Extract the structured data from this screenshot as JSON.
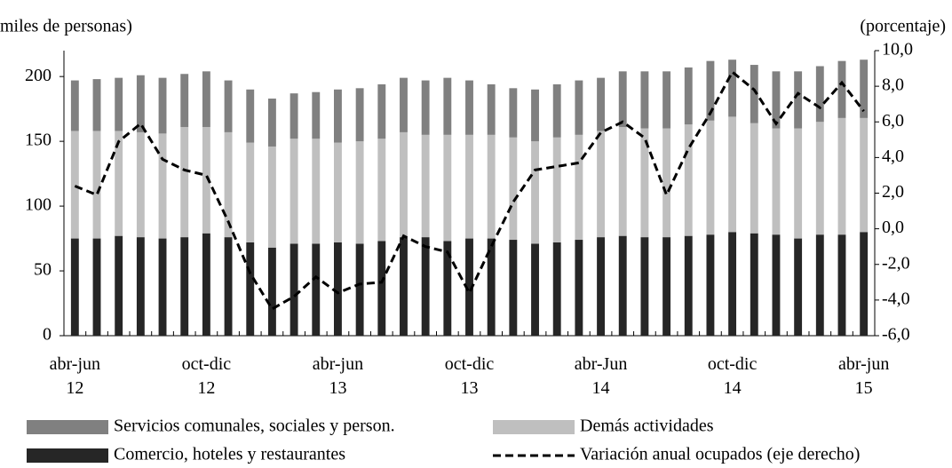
{
  "chart_data": {
    "type": "bar_line",
    "y_label": "miles de personas)",
    "y2_label": "(porcentaje)",
    "categories": [
      "abr-jun\n12",
      null,
      null,
      null,
      null,
      null,
      "oct-dic\n12",
      null,
      null,
      null,
      null,
      null,
      "abr-jun\n13",
      null,
      null,
      null,
      null,
      null,
      "oct-dic\n13",
      null,
      null,
      null,
      null,
      null,
      "abr-Jun\n14",
      null,
      null,
      null,
      null,
      null,
      "oct-dic\n14",
      null,
      null,
      null,
      null,
      null,
      "abr-jun\n15"
    ],
    "series": [
      {
        "name": "Comercio, hoteles y restaurantes",
        "color": "#262626",
        "values": [
          75,
          75,
          77,
          76,
          75,
          76,
          79,
          76,
          72,
          68,
          71,
          71,
          72,
          71,
          73,
          76,
          76,
          73,
          75,
          75,
          74,
          71,
          72,
          74,
          76,
          77,
          76,
          76,
          77,
          78,
          80,
          79,
          78,
          75,
          78,
          78,
          80
        ]
      },
      {
        "name": "Demás actividades",
        "color": "#bfbfbf",
        "values": [
          83,
          83,
          81,
          81,
          81,
          85,
          82,
          81,
          77,
          78,
          81,
          81,
          77,
          79,
          79,
          81,
          79,
          82,
          80,
          80,
          79,
          79,
          81,
          81,
          82,
          84,
          84,
          84,
          86,
          88,
          89,
          85,
          82,
          85,
          87,
          90,
          88
        ]
      },
      {
        "name": "Servicios comunales, sociales y person.",
        "color": "#808080",
        "values": [
          39,
          40,
          41,
          44,
          43,
          41,
          43,
          40,
          41,
          37,
          35,
          36,
          41,
          41,
          42,
          42,
          42,
          44,
          42,
          39,
          38,
          40,
          41,
          42,
          41,
          43,
          44,
          44,
          44,
          46,
          44,
          45,
          44,
          44,
          43,
          44,
          45
        ]
      },
      {
        "name": "Variación anual ocupados (eje derecho)",
        "color": "#000000",
        "axis": "y2",
        "dashed": true,
        "values": [
          2.4,
          1.9,
          4.9,
          5.9,
          3.9,
          3.3,
          3.0,
          0.4,
          -2.5,
          -4.5,
          -3.8,
          -2.7,
          -3.6,
          -3.1,
          -3.0,
          -0.4,
          -1.0,
          -1.3,
          -3.6,
          -1.0,
          1.5,
          3.3,
          3.5,
          3.7,
          5.4,
          6.0,
          5.1,
          1.9,
          4.5,
          6.5,
          8.8,
          7.8,
          5.9,
          7.6,
          6.8,
          8.2,
          6.6
        ]
      }
    ],
    "stacked": [
      0,
      1,
      2
    ],
    "ylim": [
      0,
      220
    ],
    "yticks": [
      0,
      50,
      100,
      150,
      200
    ],
    "y2lim": [
      -6,
      10
    ],
    "y2ticks": [
      {
        "value": 10,
        "label": "10,0"
      },
      {
        "value": 8,
        "label": "8,0"
      },
      {
        "value": 6,
        "label": "6,0"
      },
      {
        "value": 4,
        "label": "4,0"
      },
      {
        "value": 2,
        "label": "2,0"
      },
      {
        "value": 0,
        "label": "0,0"
      },
      {
        "value": -2,
        "label": "-2,0"
      },
      {
        "value": -4,
        "label": "-4,0"
      },
      {
        "value": -6,
        "label": "-6,0"
      }
    ],
    "legend_order": [
      2,
      1,
      0,
      3
    ]
  }
}
